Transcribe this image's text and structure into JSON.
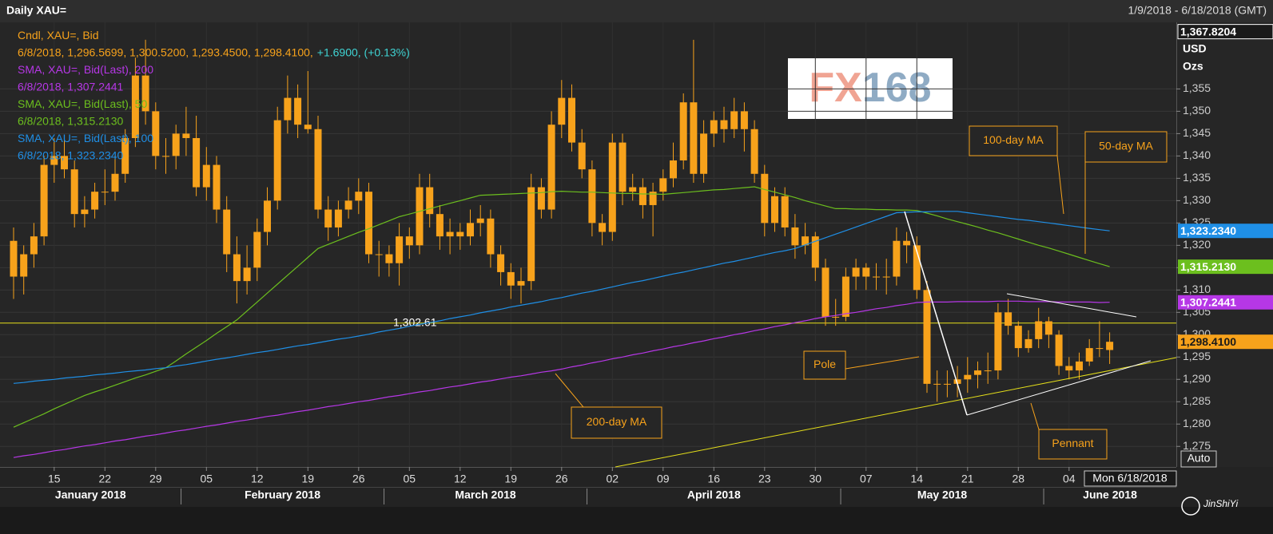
{
  "chart_data": {
    "type": "candlestick",
    "title": "Daily XAU=",
    "date_range": "1/9/2018 - 6/18/2018 (GMT)",
    "currency": "USD",
    "unit": "Ozs",
    "auto_label": "Auto",
    "cursor_label": "Mon 6/18/2018",
    "logo_parts": [
      "FX",
      "168"
    ],
    "watermark": "JinShiYi",
    "price_top": {
      "value": 1367.8204,
      "label": "1,367.8204"
    },
    "ylim": [
      1270.4,
      1369.9
    ],
    "yticks": [
      {
        "value": 1275,
        "label": "1,275"
      },
      {
        "value": 1280,
        "label": "1,280"
      },
      {
        "value": 1285,
        "label": "1,285"
      },
      {
        "value": 1290,
        "label": "1,290"
      },
      {
        "value": 1295,
        "label": "1,295"
      },
      {
        "value": 1300,
        "label": "1,300"
      },
      {
        "value": 1305,
        "label": "1,305"
      },
      {
        "value": 1310,
        "label": "1,310"
      },
      {
        "value": 1315,
        "label": "1,315"
      },
      {
        "value": 1320,
        "label": "1,320"
      },
      {
        "value": 1325,
        "label": "1,325"
      },
      {
        "value": 1330,
        "label": "1,330"
      },
      {
        "value": 1335,
        "label": "1,335"
      },
      {
        "value": 1340,
        "label": "1,340"
      },
      {
        "value": 1345,
        "label": "1,345"
      },
      {
        "value": 1350,
        "label": "1,350"
      },
      {
        "value": 1355,
        "label": "1,355"
      }
    ],
    "grid": true,
    "categories": [
      null,
      null,
      null,
      null,
      "15",
      null,
      null,
      null,
      null,
      "22",
      null,
      null,
      null,
      null,
      "29",
      null,
      null,
      null,
      null,
      "05",
      null,
      null,
      null,
      null,
      "12",
      null,
      null,
      null,
      null,
      "19",
      null,
      null,
      null,
      null,
      "26",
      null,
      null,
      null,
      null,
      "05",
      null,
      null,
      null,
      null,
      "12",
      null,
      null,
      null,
      null,
      "19",
      null,
      null,
      null,
      null,
      "26",
      null,
      null,
      null,
      null,
      "02",
      null,
      null,
      null,
      null,
      "09",
      null,
      null,
      null,
      null,
      "16",
      null,
      null,
      null,
      null,
      "23",
      null,
      null,
      null,
      null,
      "30",
      null,
      null,
      null,
      null,
      "07",
      null,
      null,
      null,
      null,
      "14",
      null,
      null,
      null,
      null,
      "21",
      null,
      null,
      null,
      null,
      "28",
      null,
      null,
      null,
      null,
      "04",
      null,
      null,
      null,
      null
    ],
    "months": [
      "January 2018",
      "February 2018",
      "March 2018",
      "April 2018",
      "May 2018",
      "June 2018"
    ],
    "candles": {
      "name": "Cndl, XAU=, Bid",
      "legend_value": "6/8/2018, 1,296.5699, 1,300.5200, 1,293.4500, 1,298.4100,",
      "legend_change": "+1.6900, (+0.13%)",
      "change_color": "#3fd3d3",
      "color": "#f7a21b",
      "last_label": {
        "value": 1298.41,
        "label": "1,298.4100"
      },
      "open": [
        1321,
        1313,
        1318,
        1322,
        1338,
        1340,
        1337,
        1327,
        1328,
        1332,
        1332,
        1336,
        1344,
        1358,
        1350,
        1340,
        1340,
        1345,
        1344,
        1333,
        1338,
        1328,
        1318,
        1312,
        1315,
        1323,
        1330,
        1348,
        1353,
        1347,
        1346,
        1328,
        1324,
        1328,
        1330,
        1332,
        1318,
        1318,
        1316,
        1322,
        1320,
        1333,
        1327,
        1322,
        1323,
        1322,
        1325,
        1326,
        1318,
        1314,
        1311,
        1312,
        1333,
        1328,
        1347,
        1353,
        1343,
        1337,
        1325,
        1323,
        1343,
        1332,
        1333,
        1329,
        1332,
        1335,
        1339,
        1352,
        1336,
        1345,
        1348,
        1346,
        1350,
        1346,
        1336,
        1325,
        1331,
        1324,
        1320,
        1322,
        1315,
        1304,
        1304,
        1313,
        1315,
        1313,
        1313,
        1313,
        1321,
        1320,
        1310,
        1289,
        1289,
        1289,
        1290,
        1291,
        1292,
        1292,
        1305,
        1302,
        1297,
        1299,
        1303,
        1300,
        1293,
        1292,
        1294,
        1297,
        1296.5699
      ],
      "high": [
        1324,
        1320,
        1325,
        1340,
        1344,
        1344,
        1339,
        1331,
        1334,
        1337,
        1340,
        1346,
        1362,
        1366,
        1352,
        1344,
        1347,
        1351,
        1349,
        1342,
        1340,
        1331,
        1322,
        1320,
        1326,
        1333,
        1351,
        1358,
        1356,
        1359,
        1349,
        1331,
        1330,
        1333,
        1335,
        1334,
        1321,
        1320,
        1325,
        1324,
        1336,
        1336,
        1329,
        1326,
        1325,
        1328,
        1329,
        1328,
        1320,
        1316,
        1315,
        1336,
        1335,
        1350,
        1357,
        1356,
        1346,
        1339,
        1327,
        1345,
        1345,
        1336,
        1335,
        1334,
        1337,
        1343,
        1354,
        1366,
        1348,
        1350,
        1351,
        1353,
        1352,
        1348,
        1338,
        1333,
        1333,
        1327,
        1325,
        1323,
        1317,
        1308,
        1315,
        1317,
        1316,
        1316,
        1317,
        1324,
        1323,
        1322,
        1312,
        1292,
        1292,
        1293,
        1295,
        1294,
        1296,
        1307,
        1308,
        1303,
        1301,
        1306,
        1304,
        1301,
        1295,
        1296,
        1299,
        1303,
        1300.52
      ],
      "low": [
        1308,
        1309,
        1315,
        1320,
        1334,
        1335,
        1324,
        1324,
        1326,
        1329,
        1330,
        1334,
        1342,
        1347,
        1337,
        1336,
        1337,
        1340,
        1331,
        1330,
        1325,
        1314,
        1307,
        1309,
        1312,
        1320,
        1328,
        1345,
        1344,
        1345,
        1326,
        1321,
        1322,
        1326,
        1327,
        1316,
        1313,
        1313,
        1311,
        1317,
        1318,
        1324,
        1319,
        1318,
        1319,
        1320,
        1322,
        1315,
        1311,
        1308,
        1307,
        1310,
        1326,
        1326,
        1344,
        1341,
        1335,
        1322,
        1320,
        1321,
        1329,
        1330,
        1326,
        1322,
        1330,
        1333,
        1337,
        1334,
        1334,
        1342,
        1343,
        1344,
        1341,
        1334,
        1322,
        1323,
        1322,
        1317,
        1318,
        1312,
        1302,
        1302,
        1303,
        1310,
        1310,
        1310,
        1309,
        1311,
        1316,
        1308,
        1287,
        1285,
        1286,
        1286,
        1287,
        1288,
        1289,
        1290,
        1300,
        1295,
        1296,
        1297,
        1297,
        1291,
        1290,
        1290,
        1293,
        1295,
        1293.45
      ],
      "close": [
        1313,
        1318,
        1322,
        1338,
        1340,
        1337,
        1327,
        1328,
        1332,
        1332,
        1336,
        1344,
        1358,
        1350,
        1340,
        1340,
        1345,
        1344,
        1333,
        1338,
        1328,
        1318,
        1312,
        1315,
        1323,
        1330,
        1348,
        1353,
        1347,
        1346,
        1328,
        1324,
        1328,
        1330,
        1332,
        1318,
        1318,
        1316,
        1322,
        1320,
        1333,
        1327,
        1322,
        1323,
        1322,
        1325,
        1326,
        1318,
        1314,
        1311,
        1312,
        1333,
        1328,
        1347,
        1353,
        1343,
        1337,
        1325,
        1323,
        1343,
        1332,
        1333,
        1329,
        1332,
        1335,
        1339,
        1352,
        1336,
        1345,
        1348,
        1346,
        1350,
        1346,
        1336,
        1325,
        1331,
        1324,
        1320,
        1322,
        1315,
        1304,
        1304,
        1313,
        1315,
        1313,
        1313,
        1313,
        1321,
        1320,
        1310,
        1289,
        1289,
        1289,
        1290,
        1291,
        1292,
        1292,
        1305,
        1302,
        1297,
        1299,
        1303,
        1300,
        1293,
        1292,
        1294,
        1297,
        1297,
        1298.41
      ]
    },
    "series": [
      {
        "name": "SMA, XAU=, Bid(Last),  200",
        "legend_value": "6/8/2018, 1,307.2441",
        "color": "#b637e6",
        "tag_text": "#ffffff",
        "last_label": {
          "value": 1307.2441,
          "label": "1,307.2441"
        },
        "values": [
          1272.5,
          1272.9,
          1273.2,
          1273.6,
          1274.0,
          1274.3,
          1274.7,
          1275.1,
          1275.4,
          1275.8,
          1276.2,
          1276.5,
          1276.9,
          1277.3,
          1277.6,
          1278.0,
          1278.4,
          1278.7,
          1279.1,
          1279.5,
          1279.8,
          1280.2,
          1280.6,
          1280.9,
          1281.3,
          1281.7,
          1282.0,
          1282.4,
          1282.8,
          1283.1,
          1283.5,
          1283.9,
          1284.2,
          1284.6,
          1285.0,
          1285.3,
          1285.7,
          1286.1,
          1286.4,
          1286.8,
          1287.2,
          1287.5,
          1287.9,
          1288.3,
          1288.6,
          1289.0,
          1289.4,
          1289.7,
          1290.1,
          1290.5,
          1290.8,
          1291.2,
          1291.6,
          1291.9,
          1292.3,
          1292.8,
          1293.2,
          1293.7,
          1294.1,
          1294.6,
          1295.0,
          1295.5,
          1295.9,
          1296.4,
          1296.8,
          1297.3,
          1297.7,
          1298.2,
          1298.6,
          1299.1,
          1299.5,
          1300.0,
          1300.4,
          1300.9,
          1301.3,
          1301.8,
          1302.2,
          1302.7,
          1303.1,
          1303.6,
          1304.0,
          1304.3,
          1304.7,
          1305.0,
          1305.4,
          1305.8,
          1306.1,
          1306.5,
          1306.8,
          1307.2,
          1307.3,
          1307.3,
          1307.3,
          1307.4,
          1307.4,
          1307.4,
          1307.4,
          1307.5,
          1307.5,
          1307.5,
          1307.4,
          1307.4,
          1307.4,
          1307.3,
          1307.3,
          1307.3,
          1307.3,
          1307.2,
          1307.2441
        ]
      },
      {
        "name": "SMA, XAU=, Bid(Last),  50",
        "legend_value": "6/8/2018, 1,315.2130",
        "color": "#6cbf1e",
        "tag_text": "#ffffff",
        "last_label": {
          "value": 1315.213,
          "label": "1,315.2130"
        },
        "values": [
          1279.3,
          1280.3,
          1281.3,
          1282.3,
          1283.4,
          1284.4,
          1285.4,
          1286.4,
          1287.2,
          1287.9,
          1288.7,
          1289.5,
          1290.3,
          1291.0,
          1291.8,
          1292.6,
          1294.1,
          1295.7,
          1297.2,
          1298.7,
          1300.3,
          1301.8,
          1303.3,
          1305.3,
          1307.3,
          1309.3,
          1311.3,
          1313.3,
          1315.3,
          1317.3,
          1319.3,
          1320.2,
          1321.1,
          1322.0,
          1322.9,
          1323.7,
          1324.6,
          1325.5,
          1326.4,
          1327.0,
          1327.6,
          1328.2,
          1328.8,
          1329.4,
          1330.0,
          1330.6,
          1331.2,
          1331.3,
          1331.4,
          1331.5,
          1331.6,
          1331.7,
          1331.8,
          1332.0,
          1332.1,
          1332.0,
          1331.9,
          1331.9,
          1331.8,
          1331.7,
          1331.6,
          1331.6,
          1331.5,
          1331.5,
          1331.4,
          1331.6,
          1331.8,
          1332.0,
          1332.2,
          1332.4,
          1332.5,
          1332.7,
          1332.9,
          1333.1,
          1332.5,
          1331.9,
          1331.3,
          1330.7,
          1330.0,
          1329.4,
          1328.8,
          1328.2,
          1328.2,
          1328.1,
          1328.1,
          1328.0,
          1328.0,
          1327.9,
          1327.9,
          1327.8,
          1327.2,
          1326.6,
          1325.9,
          1325.3,
          1324.7,
          1324.1,
          1323.4,
          1322.8,
          1322.1,
          1321.4,
          1320.7,
          1320.0,
          1319.4,
          1318.7,
          1318.0,
          1317.3,
          1316.6,
          1315.9,
          1315.213
        ]
      },
      {
        "name": "SMA, XAU=, Bid(Last),  100",
        "legend_value": "6/8/2018, 1,323.2340",
        "color": "#1f8fe6",
        "tag_text": "#ffffff",
        "last_label": {
          "value": 1323.234,
          "label": "1,323.2340"
        },
        "values": [
          1289.1,
          1289.3,
          1289.6,
          1289.8,
          1290.0,
          1290.3,
          1290.5,
          1290.7,
          1291.0,
          1291.2,
          1291.4,
          1291.7,
          1291.9,
          1292.1,
          1292.4,
          1292.6,
          1293.0,
          1293.3,
          1293.7,
          1294.1,
          1294.5,
          1294.8,
          1295.2,
          1295.6,
          1296.0,
          1296.3,
          1296.7,
          1297.1,
          1297.5,
          1297.8,
          1298.2,
          1298.6,
          1299.0,
          1299.3,
          1299.7,
          1300.1,
          1300.6,
          1301.0,
          1301.4,
          1301.9,
          1302.3,
          1302.7,
          1303.1,
          1303.6,
          1304.0,
          1304.4,
          1304.9,
          1305.3,
          1305.7,
          1306.2,
          1306.6,
          1307.0,
          1307.4,
          1307.9,
          1308.3,
          1308.8,
          1309.3,
          1309.7,
          1310.2,
          1310.7,
          1311.2,
          1311.7,
          1312.1,
          1312.6,
          1313.1,
          1313.6,
          1314.0,
          1314.5,
          1315.0,
          1315.5,
          1316.0,
          1316.4,
          1316.9,
          1317.4,
          1317.9,
          1318.4,
          1318.8,
          1319.3,
          1320.1,
          1320.9,
          1321.7,
          1322.5,
          1323.3,
          1324.1,
          1324.9,
          1325.7,
          1326.5,
          1327.3,
          1327.4,
          1327.5,
          1327.5,
          1327.6,
          1327.6,
          1327.6,
          1327.3,
          1327.0,
          1326.7,
          1326.4,
          1326.1,
          1325.8,
          1325.6,
          1325.3,
          1325.0,
          1324.7,
          1324.4,
          1324.1,
          1323.8,
          1323.5,
          1323.234
        ]
      }
    ],
    "hline": {
      "value": 1302.61,
      "label": "1,302.61",
      "color": "#e6e01a"
    },
    "annotations": [
      "100-day MA",
      "50-day MA",
      "Pole",
      "200-day MA",
      "Pennant"
    ]
  }
}
